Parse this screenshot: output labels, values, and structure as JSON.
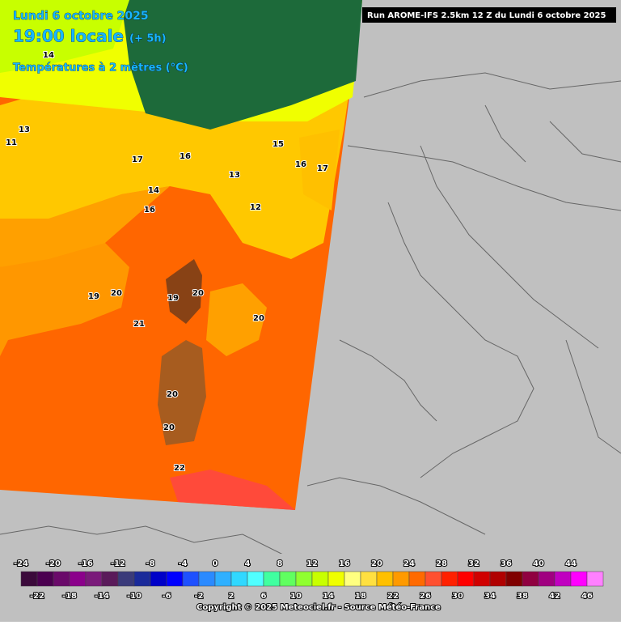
{
  "header": {
    "date": "Lundi 6 octobre 2025",
    "time": "19:00 locale",
    "offset": "(+ 5h)",
    "parameter": "Températures à 2 mètres (°C)",
    "run": "Run AROME-IFS 2.5km 12 Z du Lundi 6 octobre 2025"
  },
  "map_labels": [
    "19",
    "20",
    "21",
    "20",
    "19",
    "20",
    "20",
    "20",
    "22",
    "17",
    "16",
    "15",
    "16",
    "17",
    "14",
    "16",
    "13",
    "12",
    "14",
    "11",
    "13"
  ],
  "colorbar": {
    "ticks": [
      -24,
      -22,
      -20,
      -18,
      -16,
      -14,
      -12,
      -10,
      -8,
      -6,
      -4,
      -2,
      0,
      2,
      4,
      6,
      8,
      10,
      12,
      14,
      16,
      18,
      20,
      22,
      24,
      26,
      28,
      30,
      32,
      34,
      36,
      38,
      40,
      42,
      44,
      46
    ],
    "colors": [
      "#3b0a3b",
      "#4b0050",
      "#6a0a6a",
      "#8b008b",
      "#7a1a7a",
      "#5a1a5a",
      "#3a3a7a",
      "#1a2a9a",
      "#0000c8",
      "#0000ff",
      "#1e50ff",
      "#2a8aff",
      "#2fb0ff",
      "#30d8ff",
      "#50ffff",
      "#40ffa0",
      "#60ff60",
      "#90ff30",
      "#c8ff00",
      "#f0ff00",
      "#ffff80",
      "#ffe040",
      "#ffc000",
      "#ff9a00",
      "#ff6a00",
      "#ff5030",
      "#ff2000",
      "#ff0000",
      "#d00000",
      "#b00000",
      "#800000",
      "#900040",
      "#a00080",
      "#c000c0",
      "#ff00ff",
      "#ff80ff"
    ]
  },
  "footer": "Copyright © 2025 Meteociel.fr - Source Météo-France"
}
